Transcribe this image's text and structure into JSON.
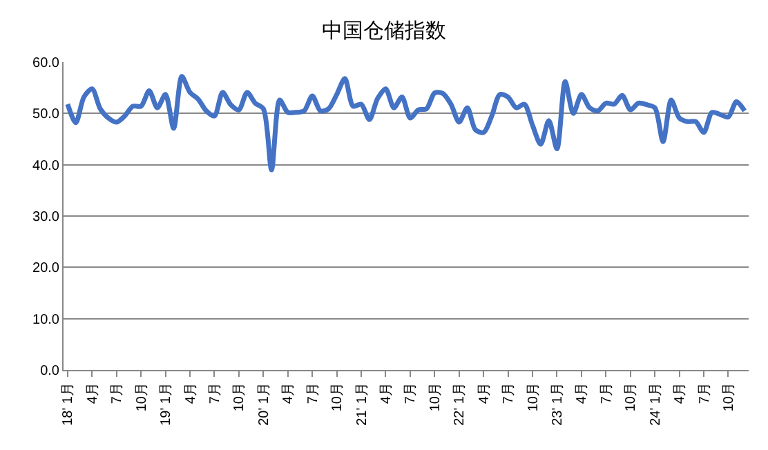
{
  "chart_data": {
    "type": "line",
    "title": "中国仓储指数",
    "categories": [
      "18' 1月",
      null,
      null,
      "4月",
      null,
      null,
      "7月",
      null,
      null,
      "10月",
      null,
      null,
      "19' 1月",
      null,
      null,
      "4月",
      null,
      null,
      "7月",
      null,
      null,
      "10月",
      null,
      null,
      "20' 1月",
      null,
      null,
      "4月",
      null,
      null,
      "7月",
      null,
      null,
      "10月",
      null,
      null,
      "21' 1月",
      null,
      null,
      "4月",
      null,
      null,
      "7月",
      null,
      null,
      "10月",
      null,
      null,
      "22' 1月",
      null,
      null,
      "4月",
      null,
      null,
      "7月",
      null,
      null,
      "10月",
      null,
      null,
      "23' 1月",
      null,
      null,
      "4月",
      null,
      null,
      "7月",
      null,
      null,
      "10月",
      null,
      null,
      "24' 1月",
      null,
      null,
      "4月",
      null,
      null,
      "7月",
      null,
      null,
      "10月",
      null,
      null
    ],
    "series": [
      {
        "color": "#4472c4",
        "values": [
          51.8,
          48.2,
          53.2,
          54.8,
          50.9,
          49.1,
          48.3,
          49.5,
          51.4,
          51.4,
          54.4,
          51.1,
          53.7,
          47.1,
          57.2,
          54.1,
          52.8,
          50.5,
          49.5,
          54.1,
          51.7,
          50.7,
          54.1,
          52.0,
          50.9,
          39.0,
          52.6,
          50.2,
          50.2,
          50.5,
          53.4,
          50.5,
          50.9,
          53.7,
          56.8,
          51.4,
          51.8,
          48.8,
          52.9,
          54.8,
          51.1,
          53.2,
          49.1,
          50.7,
          50.9,
          54.0,
          53.9,
          51.8,
          48.3,
          51.1,
          46.8,
          46.3,
          49.5,
          53.7,
          53.2,
          51.1,
          51.8,
          47.7,
          44.0,
          48.6,
          43.1,
          56.2,
          50.0,
          53.7,
          51.1,
          50.5,
          52.0,
          51.8,
          53.5,
          50.7,
          52.0,
          51.7,
          51.1,
          44.5,
          52.6,
          49.1,
          48.4,
          48.4,
          46.3,
          50.2,
          49.8,
          49.3,
          52.3,
          50.5
        ]
      }
    ],
    "ylim": [
      0,
      60
    ],
    "yticks": [
      {
        "value": 0,
        "label": "0.0"
      },
      {
        "value": 10,
        "label": "10.0"
      },
      {
        "value": 20,
        "label": "20.0"
      },
      {
        "value": 30,
        "label": "30.0"
      },
      {
        "value": 40,
        "label": "40.0"
      },
      {
        "value": 50,
        "label": "50.0"
      },
      {
        "value": 60,
        "label": "60.0"
      }
    ],
    "grid": "y",
    "marker": "none",
    "line_style": "solid"
  }
}
